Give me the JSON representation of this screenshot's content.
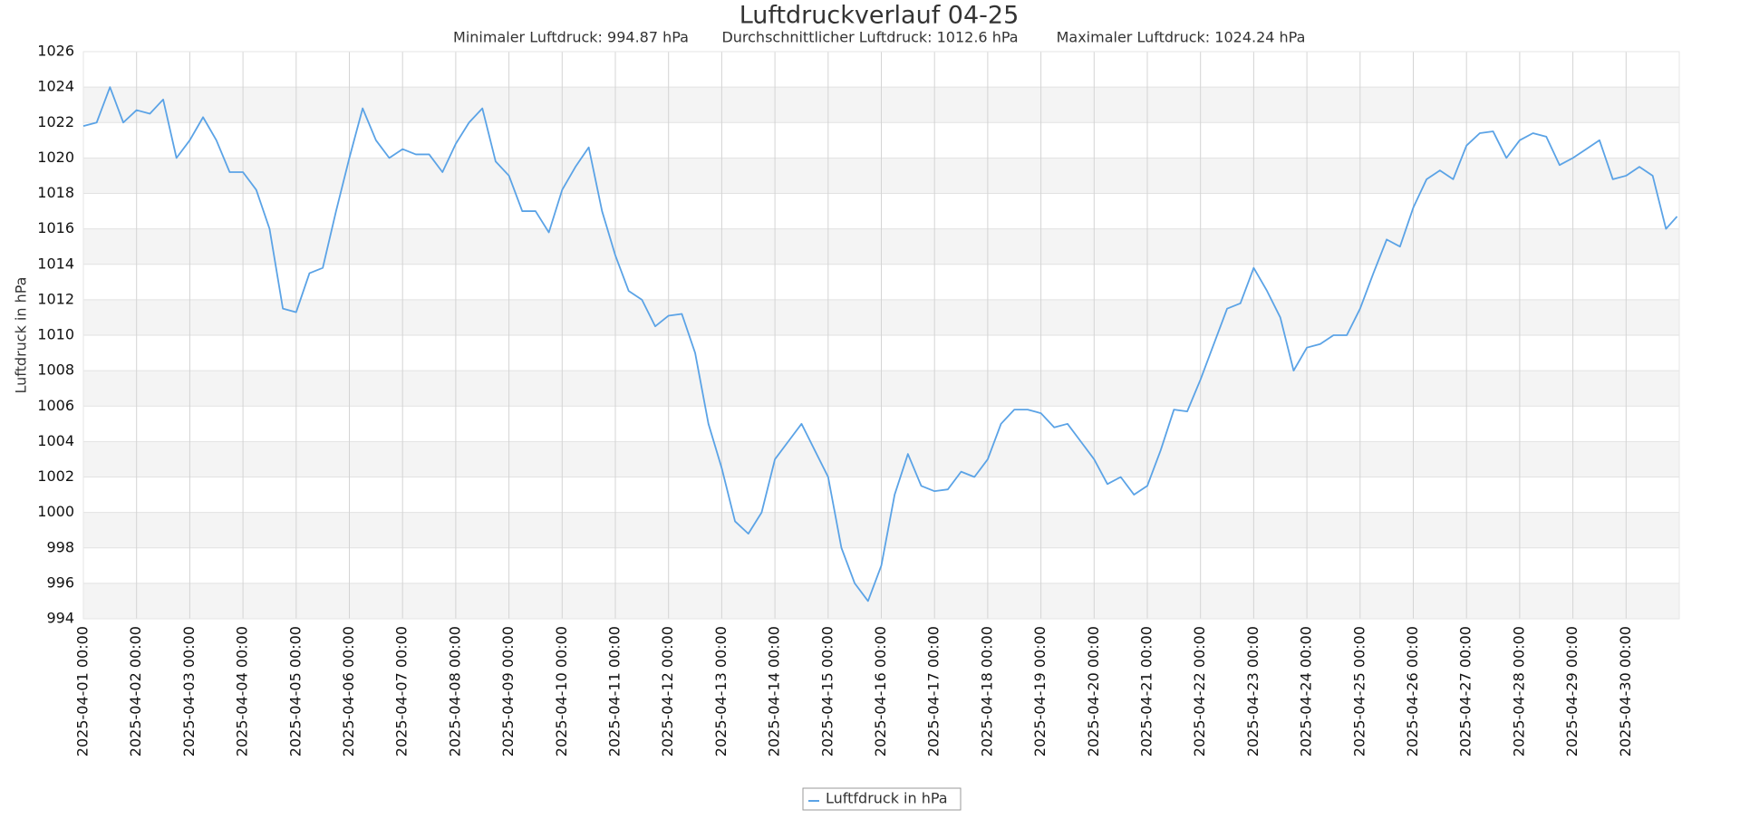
{
  "chart_data": {
    "type": "line",
    "title": "Luftdruckverlauf 04-25",
    "subtitles": [
      "Minimaler Luftdruck: 994.87 hPa",
      "Durchschnittlicher Luftdruck: 1012.6 hPa",
      "Maximaler Luftdruck: 1024.24 hPa"
    ],
    "y_label": "Luftdruck in hPa",
    "legend": "Luftfdruck in hPa",
    "grid": true,
    "xlim": [
      "2025-04-01 00:00",
      "2025-05-01 00:00"
    ],
    "xticks": [
      "2025-04-01 00:00",
      "2025-04-02 00:00",
      "2025-04-03 00:00",
      "2025-04-04 00:00",
      "2025-04-05 00:00",
      "2025-04-06 00:00",
      "2025-04-07 00:00",
      "2025-04-08 00:00",
      "2025-04-09 00:00",
      "2025-04-10 00:00",
      "2025-04-11 00:00",
      "2025-04-12 00:00",
      "2025-04-13 00:00",
      "2025-04-14 00:00",
      "2025-04-15 00:00",
      "2025-04-16 00:00",
      "2025-04-17 00:00",
      "2025-04-18 00:00",
      "2025-04-19 00:00",
      "2025-04-20 00:00",
      "2025-04-21 00:00",
      "2025-04-22 00:00",
      "2025-04-23 00:00",
      "2025-04-24 00:00",
      "2025-04-25 00:00",
      "2025-04-26 00:00",
      "2025-04-27 00:00",
      "2025-04-28 00:00",
      "2025-04-29 00:00",
      "2025-04-30 00:00"
    ],
    "ylim": [
      994,
      1026
    ],
    "yticks": [
      994,
      996,
      998,
      1000,
      1002,
      1004,
      1006,
      1008,
      1010,
      1012,
      1014,
      1016,
      1018,
      1020,
      1022,
      1024,
      1026
    ],
    "x": [
      "2025-04-01 00:00",
      "2025-04-01 06:00",
      "2025-04-01 12:00",
      "2025-04-01 18:00",
      "2025-04-02 00:00",
      "2025-04-02 06:00",
      "2025-04-02 12:00",
      "2025-04-02 18:00",
      "2025-04-03 00:00",
      "2025-04-03 06:00",
      "2025-04-03 12:00",
      "2025-04-03 18:00",
      "2025-04-04 00:00",
      "2025-04-04 06:00",
      "2025-04-04 12:00",
      "2025-04-04 18:00",
      "2025-04-05 00:00",
      "2025-04-05 06:00",
      "2025-04-05 12:00",
      "2025-04-05 18:00",
      "2025-04-06 00:00",
      "2025-04-06 06:00",
      "2025-04-06 12:00",
      "2025-04-06 18:00",
      "2025-04-07 00:00",
      "2025-04-07 06:00",
      "2025-04-07 12:00",
      "2025-04-07 18:00",
      "2025-04-08 00:00",
      "2025-04-08 06:00",
      "2025-04-08 12:00",
      "2025-04-08 18:00",
      "2025-04-09 00:00",
      "2025-04-09 06:00",
      "2025-04-09 12:00",
      "2025-04-09 18:00",
      "2025-04-10 00:00",
      "2025-04-10 06:00",
      "2025-04-10 12:00",
      "2025-04-10 18:00",
      "2025-04-11 00:00",
      "2025-04-11 06:00",
      "2025-04-11 12:00",
      "2025-04-11 18:00",
      "2025-04-12 00:00",
      "2025-04-12 06:00",
      "2025-04-12 12:00",
      "2025-04-12 18:00",
      "2025-04-13 00:00",
      "2025-04-13 06:00",
      "2025-04-13 12:00",
      "2025-04-13 18:00",
      "2025-04-14 00:00",
      "2025-04-14 06:00",
      "2025-04-14 12:00",
      "2025-04-14 18:00",
      "2025-04-15 00:00",
      "2025-04-15 06:00",
      "2025-04-15 12:00",
      "2025-04-15 18:00",
      "2025-04-16 00:00",
      "2025-04-16 06:00",
      "2025-04-16 12:00",
      "2025-04-16 18:00",
      "2025-04-17 00:00",
      "2025-04-17 06:00",
      "2025-04-17 12:00",
      "2025-04-17 18:00",
      "2025-04-18 00:00",
      "2025-04-18 06:00",
      "2025-04-18 12:00",
      "2025-04-18 18:00",
      "2025-04-19 00:00",
      "2025-04-19 06:00",
      "2025-04-19 12:00",
      "2025-04-19 18:00",
      "2025-04-20 00:00",
      "2025-04-20 06:00",
      "2025-04-20 12:00",
      "2025-04-20 18:00",
      "2025-04-21 00:00",
      "2025-04-21 06:00",
      "2025-04-21 12:00",
      "2025-04-21 18:00",
      "2025-04-22 00:00",
      "2025-04-22 06:00",
      "2025-04-22 12:00",
      "2025-04-22 18:00",
      "2025-04-23 00:00",
      "2025-04-23 06:00",
      "2025-04-23 12:00",
      "2025-04-23 18:00",
      "2025-04-24 00:00",
      "2025-04-24 06:00",
      "2025-04-24 12:00",
      "2025-04-24 18:00",
      "2025-04-25 00:00",
      "2025-04-25 06:00",
      "2025-04-25 12:00",
      "2025-04-25 18:00",
      "2025-04-26 00:00",
      "2025-04-26 06:00",
      "2025-04-26 12:00",
      "2025-04-26 18:00",
      "2025-04-27 00:00",
      "2025-04-27 06:00",
      "2025-04-27 12:00",
      "2025-04-27 18:00",
      "2025-04-28 00:00",
      "2025-04-28 06:00",
      "2025-04-28 12:00",
      "2025-04-28 18:00",
      "2025-04-29 00:00",
      "2025-04-29 06:00",
      "2025-04-29 12:00",
      "2025-04-29 18:00",
      "2025-04-30 00:00",
      "2025-04-30 06:00",
      "2025-04-30 12:00",
      "2025-04-30 18:00",
      "2025-04-30 23:00"
    ],
    "series": [
      {
        "name": "Luftfdruck in hPa",
        "color": "#5ba3e6",
        "values": [
          1021.8,
          1022.0,
          1024.0,
          1022.0,
          1022.7,
          1022.5,
          1023.3,
          1020.0,
          1021.0,
          1022.3,
          1021.0,
          1019.2,
          1019.2,
          1018.2,
          1016.0,
          1011.5,
          1011.3,
          1013.5,
          1013.8,
          1017.0,
          1020.0,
          1022.8,
          1021.0,
          1020.0,
          1020.5,
          1020.2,
          1020.2,
          1019.2,
          1020.8,
          1022.0,
          1022.8,
          1019.8,
          1019.0,
          1017.0,
          1017.0,
          1015.8,
          1018.2,
          1019.5,
          1020.6,
          1017.0,
          1014.5,
          1012.5,
          1012.0,
          1010.5,
          1011.1,
          1011.2,
          1009.0,
          1005.0,
          1002.5,
          999.5,
          998.8,
          1000.0,
          1003.0,
          1004.0,
          1005.0,
          1003.5,
          1002.0,
          998.0,
          996.0,
          995.0,
          997.0,
          1001.0,
          1003.3,
          1001.5,
          1001.2,
          1001.3,
          1002.3,
          1002.0,
          1003.0,
          1005.0,
          1005.8,
          1005.8,
          1005.6,
          1004.8,
          1005.0,
          1004.0,
          1003.0,
          1001.6,
          1002.0,
          1001.0,
          1001.5,
          1003.5,
          1005.8,
          1005.7,
          1007.5,
          1009.5,
          1011.5,
          1011.8,
          1013.8,
          1012.5,
          1011.0,
          1008.0,
          1009.3,
          1009.5,
          1010.0,
          1010.0,
          1011.5,
          1013.5,
          1015.4,
          1015.0,
          1017.2,
          1018.8,
          1019.3,
          1018.8,
          1020.7,
          1021.4,
          1021.5,
          1020.0,
          1021.0,
          1021.4,
          1021.2,
          1019.6,
          1020.0,
          1020.5,
          1021.0,
          1018.8,
          1019.0,
          1019.5,
          1019.0,
          1016.0,
          1016.7
        ]
      }
    ]
  }
}
